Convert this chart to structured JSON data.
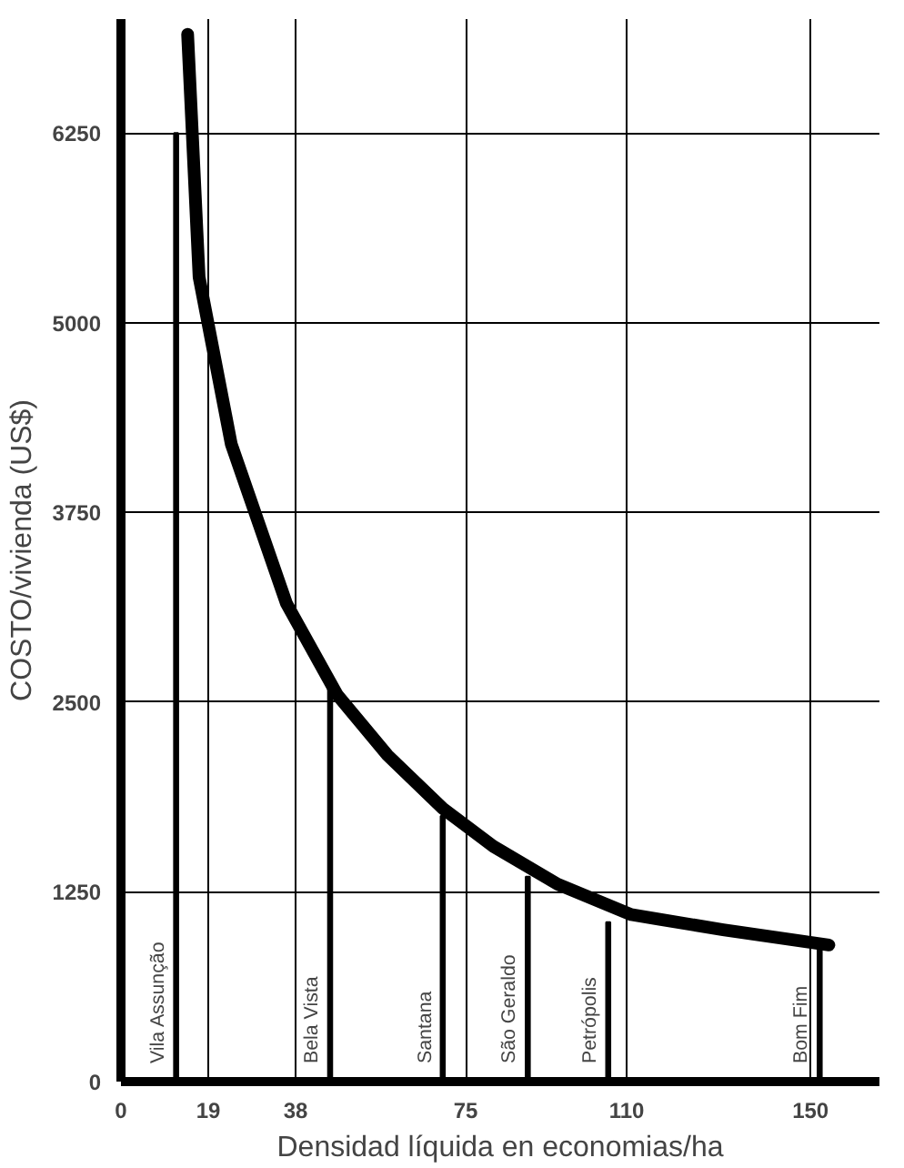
{
  "chart_data": {
    "type": "line",
    "xlabel": "Densidad líquida en economias/ha",
    "ylabel": "COSTO/vivienda (US$)",
    "xlim": [
      0,
      165
    ],
    "ylim": [
      0,
      7000
    ],
    "xticks": [
      0,
      19,
      38,
      75,
      110,
      150
    ],
    "yticks": [
      0,
      1250,
      2500,
      3750,
      5000,
      6250
    ],
    "grid": true,
    "series": [
      {
        "color": "#000000",
        "x": [
          14.5,
          17,
          24,
          36,
          47,
          58,
          70,
          81,
          95,
          111,
          131,
          154
        ],
        "values": [
          6900,
          5300,
          4200,
          3150,
          2550,
          2150,
          1800,
          1550,
          1300,
          1100,
          1000,
          900
        ]
      },
      {
        "type": "bar",
        "color": "#000000",
        "x": [
          12,
          45.5,
          70,
          88.5,
          106,
          152
        ],
        "values": [
          6250,
          2600,
          1750,
          1350,
          1050,
          900
        ]
      }
    ],
    "annotations": [
      {
        "text": "Vila Assunção",
        "x": 12,
        "y": 0
      },
      {
        "text": "Bela Vista",
        "x": 45.6,
        "y": 0
      },
      {
        "text": "Santana",
        "x": 70.2,
        "y": 0
      },
      {
        "text": "São Geraldo",
        "x": 88.4,
        "y": 0
      },
      {
        "text": "Petrópolis",
        "x": 106,
        "y": 0
      },
      {
        "text": "Bom Fim",
        "x": 152,
        "y": 0
      }
    ]
  }
}
